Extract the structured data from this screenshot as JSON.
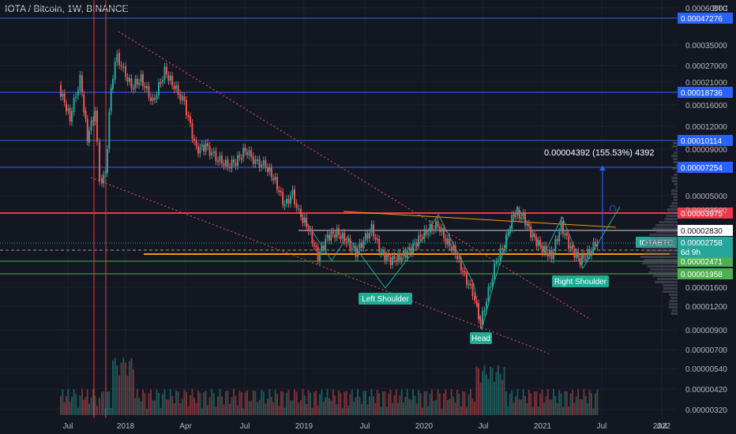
{
  "header": {
    "title": "IOTA / Bitcoin, 1W, BINANCE",
    "currency": "BTC"
  },
  "chart_data": {
    "type": "candlestick",
    "symbol": "IOTABTC",
    "timeframe": "1W",
    "exchange": "BINANCE",
    "scale": "log",
    "x_labels": [
      "Jul",
      "2018",
      "Apr",
      "Jul",
      "2019",
      "Jul",
      "2020",
      "Jul",
      "2021",
      "Jul",
      "2022",
      "Jul"
    ],
    "y_ticks": [
      "0.00060000",
      "0.00035000",
      "0.00027000",
      "0.00021000",
      "0.00016000",
      "0.00012000",
      "0.00009000",
      "0.00005000",
      "0.00003500",
      "0.00001600",
      "0.00001200",
      "0.00000900",
      "0.00000700",
      "0.00000540",
      "0.00000420",
      "0.00000320"
    ],
    "horizontal_levels": [
      {
        "label": "0.00047276",
        "color": "#2962ff"
      },
      {
        "label": "0.00018736",
        "color": "#2962ff"
      },
      {
        "label": "0.00010114",
        "color": "#2962ff"
      },
      {
        "label": "0.00007254",
        "color": "#2962ff"
      },
      {
        "label": "0.00003975",
        "color": "#f23645"
      },
      {
        "label": "0.00002471",
        "color": "#4caf50"
      },
      {
        "label": "0.00001958",
        "color": "#4caf50"
      }
    ],
    "last_price": {
      "symbol": "IOTABTC",
      "value": "0.00002758",
      "countdown": "6d 9h",
      "color": "#26a69a"
    },
    "marker_price": "0.00002830",
    "measure": {
      "text": "0.00004392 (155.53%) 4392",
      "color": "#2962ff"
    },
    "annotations": [
      "Left Shoulder",
      "Head",
      "Right Shoulder"
    ],
    "pattern": "inverse head and shoulders",
    "colors": {
      "up": "#26a69a",
      "down": "#ef5350",
      "background": "#131722"
    }
  }
}
